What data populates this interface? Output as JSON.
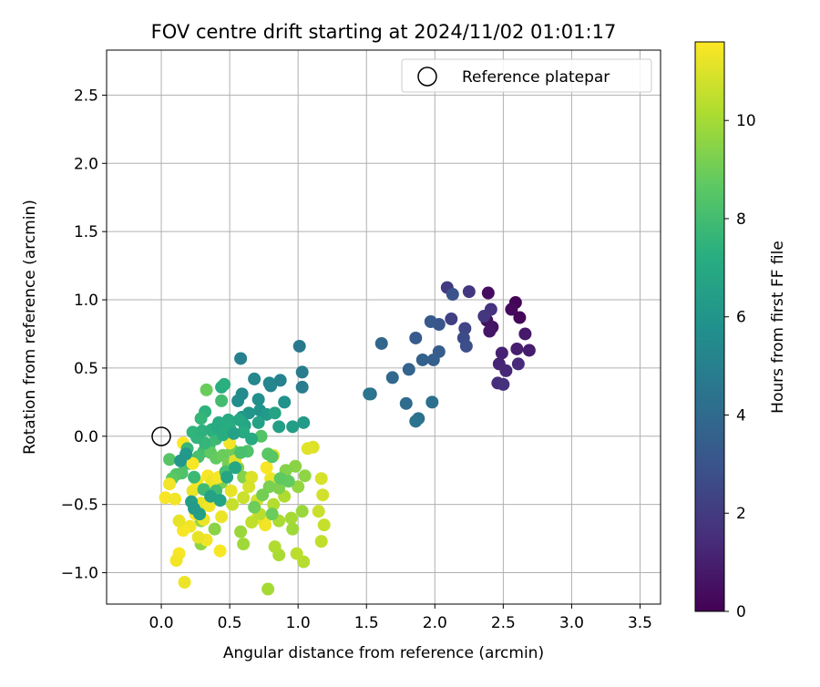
{
  "chart_data": {
    "type": "scatter",
    "title": "FOV centre drift starting at 2024/11/02 01:01:17",
    "xlabel": "Angular distance from reference (arcmin)",
    "ylabel": "Rotation from reference (arcmin)",
    "xlim": [
      -0.4,
      3.65
    ],
    "ylim": [
      -1.23,
      2.83
    ],
    "xticks": [
      0.0,
      0.5,
      1.0,
      1.5,
      2.0,
      2.5,
      3.0,
      3.5
    ],
    "xtick_labels": [
      "0.0",
      "0.5",
      "1.0",
      "1.5",
      "2.0",
      "2.5",
      "3.0",
      "3.5"
    ],
    "yticks": [
      -1.0,
      -0.5,
      0.0,
      0.5,
      1.0,
      1.5,
      2.0,
      2.5
    ],
    "ytick_labels": [
      "−1.0",
      "−0.5",
      "0.0",
      "0.5",
      "1.0",
      "1.5",
      "2.0",
      "2.5"
    ],
    "grid": true,
    "legend": {
      "placement": "top-right",
      "entries": [
        "Reference platepar"
      ]
    },
    "colormap": "viridis",
    "colorbar": {
      "label": "Hours from first FF file",
      "range": [
        0,
        11.6
      ],
      "ticks": [
        0,
        2,
        4,
        6,
        8,
        10
      ],
      "tick_labels": [
        "0",
        "2",
        "4",
        "6",
        "8",
        "10"
      ]
    },
    "reference_point": {
      "x": 0.0,
      "y": 0.0,
      "label": "Reference platepar"
    },
    "series": [
      {
        "points": [
          {
            "x": 2.59,
            "y": 0.98,
            "t": 0.1
          },
          {
            "x": 2.62,
            "y": 0.87,
            "t": 0.2
          },
          {
            "x": 2.56,
            "y": 0.93,
            "t": 0.3
          },
          {
            "x": 2.39,
            "y": 1.05,
            "t": 0.4
          },
          {
            "x": 2.38,
            "y": 0.85,
            "t": 0.5
          },
          {
            "x": 2.42,
            "y": 0.8,
            "t": 0.6
          },
          {
            "x": 2.4,
            "y": 0.77,
            "t": 0.7
          },
          {
            "x": 2.66,
            "y": 0.75,
            "t": 0.8
          },
          {
            "x": 2.69,
            "y": 0.63,
            "t": 0.9
          },
          {
            "x": 2.6,
            "y": 0.64,
            "t": 1.0
          },
          {
            "x": 2.49,
            "y": 0.61,
            "t": 1.1
          },
          {
            "x": 2.47,
            "y": 0.53,
            "t": 1.2
          },
          {
            "x": 2.52,
            "y": 0.48,
            "t": 1.3
          },
          {
            "x": 2.61,
            "y": 0.53,
            "t": 1.4
          },
          {
            "x": 2.46,
            "y": 0.39,
            "t": 1.5
          },
          {
            "x": 2.5,
            "y": 0.38,
            "t": 1.6
          },
          {
            "x": 2.41,
            "y": 0.93,
            "t": 1.7
          },
          {
            "x": 2.36,
            "y": 0.88,
            "t": 1.8
          },
          {
            "x": 2.25,
            "y": 1.06,
            "t": 1.9
          },
          {
            "x": 2.09,
            "y": 1.09,
            "t": 2.0
          },
          {
            "x": 2.12,
            "y": 0.86,
            "t": 2.2
          },
          {
            "x": 2.22,
            "y": 0.79,
            "t": 2.4
          },
          {
            "x": 2.21,
            "y": 0.72,
            "t": 2.6
          },
          {
            "x": 2.23,
            "y": 0.66,
            "t": 2.8
          },
          {
            "x": 2.13,
            "y": 1.04,
            "t": 3.0
          },
          {
            "x": 2.03,
            "y": 0.82,
            "t": 3.1
          },
          {
            "x": 1.97,
            "y": 0.84,
            "t": 3.2
          },
          {
            "x": 1.86,
            "y": 0.72,
            "t": 3.3
          },
          {
            "x": 2.03,
            "y": 0.62,
            "t": 3.4
          },
          {
            "x": 1.99,
            "y": 0.56,
            "t": 3.5
          },
          {
            "x": 1.91,
            "y": 0.56,
            "t": 3.6
          },
          {
            "x": 1.81,
            "y": 0.49,
            "t": 3.7
          },
          {
            "x": 1.61,
            "y": 0.68,
            "t": 3.8
          },
          {
            "x": 1.69,
            "y": 0.43,
            "t": 3.9
          },
          {
            "x": 1.53,
            "y": 0.31,
            "t": 4.0
          },
          {
            "x": 1.79,
            "y": 0.24,
            "t": 4.1
          },
          {
            "x": 1.98,
            "y": 0.25,
            "t": 4.2
          },
          {
            "x": 1.88,
            "y": 0.13,
            "t": 4.3
          },
          {
            "x": 1.86,
            "y": 0.11,
            "t": 4.4
          },
          {
            "x": 1.52,
            "y": 0.31,
            "t": 4.5
          },
          {
            "x": 1.01,
            "y": 0.66,
            "t": 4.7
          },
          {
            "x": 1.03,
            "y": 0.47,
            "t": 4.8
          },
          {
            "x": 1.03,
            "y": 0.36,
            "t": 4.9
          },
          {
            "x": 0.58,
            "y": 0.57,
            "t": 5.0
          },
          {
            "x": 0.87,
            "y": 0.41,
            "t": 5.1
          },
          {
            "x": 0.8,
            "y": 0.37,
            "t": 5.2
          },
          {
            "x": 0.79,
            "y": 0.39,
            "t": 5.3
          },
          {
            "x": 0.68,
            "y": 0.42,
            "t": 5.4
          },
          {
            "x": 0.59,
            "y": 0.31,
            "t": 5.5
          },
          {
            "x": 0.56,
            "y": 0.26,
            "t": 5.6
          },
          {
            "x": 0.71,
            "y": 0.27,
            "t": 5.7
          },
          {
            "x": 0.9,
            "y": 0.25,
            "t": 5.8
          },
          {
            "x": 0.72,
            "y": 0.19,
            "t": 5.9
          },
          {
            "x": 0.64,
            "y": 0.17,
            "t": 6.0
          },
          {
            "x": 0.59,
            "y": 0.14,
            "t": 6.1
          },
          {
            "x": 0.77,
            "y": 0.16,
            "t": 6.2
          },
          {
            "x": 1.04,
            "y": 0.1,
            "t": 6.3
          },
          {
            "x": 0.96,
            "y": 0.07,
            "t": 6.4
          },
          {
            "x": 0.86,
            "y": 0.07,
            "t": 6.5
          },
          {
            "x": 0.71,
            "y": 0.1,
            "t": 6.6
          },
          {
            "x": 0.83,
            "y": 0.17,
            "t": 6.7
          },
          {
            "x": 0.61,
            "y": 0.08,
            "t": 6.8
          },
          {
            "x": 0.57,
            "y": 0.12,
            "t": 6.9
          },
          {
            "x": 0.49,
            "y": 0.12,
            "t": 7.0
          },
          {
            "x": 0.42,
            "y": 0.1,
            "t": 7.1
          },
          {
            "x": 0.44,
            "y": 0.36,
            "t": 7.2
          },
          {
            "x": 0.46,
            "y": 0.38,
            "t": 7.3
          },
          {
            "x": 0.32,
            "y": 0.18,
            "t": 7.4
          },
          {
            "x": 0.23,
            "y": 0.03,
            "t": 7.5
          },
          {
            "x": 0.29,
            "y": 0.13,
            "t": 7.6
          },
          {
            "x": 0.38,
            "y": 0.03,
            "t": 7.7
          },
          {
            "x": 0.4,
            "y": -0.02,
            "t": 7.8
          },
          {
            "x": 0.35,
            "y": -0.07,
            "t": 7.9
          },
          {
            "x": 0.31,
            "y": -0.11,
            "t": 8.0
          },
          {
            "x": 0.27,
            "y": -0.15,
            "t": 8.1
          },
          {
            "x": 0.2,
            "y": -0.2,
            "t": 8.2
          },
          {
            "x": 0.15,
            "y": -0.27,
            "t": 8.3
          },
          {
            "x": 0.11,
            "y": -0.28,
            "t": 8.4
          },
          {
            "x": 0.06,
            "y": -0.17,
            "t": 8.5
          },
          {
            "x": 0.08,
            "y": -0.31,
            "t": 8.6
          },
          {
            "x": 0.36,
            "y": -0.12,
            "t": 8.7
          },
          {
            "x": 0.4,
            "y": -0.16,
            "t": 8.8
          },
          {
            "x": 0.45,
            "y": -0.14,
            "t": 8.9
          },
          {
            "x": 0.52,
            "y": -0.1,
            "t": 9.0
          },
          {
            "x": 0.49,
            "y": -0.2,
            "t": 9.1
          },
          {
            "x": 0.44,
            "y": -0.34,
            "t": 9.2
          },
          {
            "x": 0.56,
            "y": -0.23,
            "t": 9.3
          },
          {
            "x": 0.6,
            "y": -0.3,
            "t": 9.4
          },
          {
            "x": 0.39,
            "y": -0.68,
            "t": 9.5
          },
          {
            "x": 0.29,
            "y": -0.79,
            "t": 9.6
          },
          {
            "x": 0.29,
            "y": -0.62,
            "t": 9.7
          },
          {
            "x": 0.58,
            "y": -0.7,
            "t": 9.8
          },
          {
            "x": 0.6,
            "y": -0.79,
            "t": 9.9
          },
          {
            "x": 0.78,
            "y": -1.12,
            "t": 10.0
          },
          {
            "x": 0.86,
            "y": -0.87,
            "t": 10.1
          },
          {
            "x": 0.83,
            "y": -0.81,
            "t": 10.2
          },
          {
            "x": 1.04,
            "y": -0.92,
            "t": 10.3
          },
          {
            "x": 0.99,
            "y": -0.86,
            "t": 10.4
          },
          {
            "x": 1.17,
            "y": -0.77,
            "t": 10.5
          },
          {
            "x": 1.19,
            "y": -0.65,
            "t": 10.6
          },
          {
            "x": 1.15,
            "y": -0.55,
            "t": 10.7
          },
          {
            "x": 1.18,
            "y": -0.43,
            "t": 10.8
          },
          {
            "x": 1.17,
            "y": -0.31,
            "t": 10.9
          },
          {
            "x": 1.11,
            "y": -0.08,
            "t": 11.0
          },
          {
            "x": 1.07,
            "y": -0.09,
            "t": 11.1
          },
          {
            "x": 0.82,
            "y": -0.14,
            "t": 11.2
          },
          {
            "x": 0.8,
            "y": -0.31,
            "t": 11.3
          },
          {
            "x": 0.06,
            "y": -0.35,
            "t": 11.4
          },
          {
            "x": 0.03,
            "y": -0.45,
            "t": 11.5
          },
          {
            "x": 0.1,
            "y": -0.46,
            "t": 11.4
          },
          {
            "x": 0.23,
            "y": -0.4,
            "t": 11.3
          },
          {
            "x": 0.29,
            "y": -0.49,
            "t": 11.2
          },
          {
            "x": 0.35,
            "y": -0.51,
            "t": 11.4
          },
          {
            "x": 0.25,
            "y": -0.57,
            "t": 11.5
          },
          {
            "x": 0.31,
            "y": -0.61,
            "t": 11.3
          },
          {
            "x": 0.21,
            "y": -0.66,
            "t": 11.4
          },
          {
            "x": 0.16,
            "y": -0.69,
            "t": 11.5
          },
          {
            "x": 0.13,
            "y": -0.62,
            "t": 11.2
          },
          {
            "x": 0.44,
            "y": -0.59,
            "t": 11.3
          },
          {
            "x": 0.43,
            "y": -0.84,
            "t": 11.5
          },
          {
            "x": 0.33,
            "y": -0.76,
            "t": 11.4
          },
          {
            "x": 0.27,
            "y": -0.74,
            "t": 11.2
          },
          {
            "x": 0.13,
            "y": -0.86,
            "t": 11.5
          },
          {
            "x": 0.11,
            "y": -0.91,
            "t": 11.4
          },
          {
            "x": 0.17,
            "y": -1.07,
            "t": 11.3
          },
          {
            "x": 0.76,
            "y": -0.6,
            "t": 11.5
          },
          {
            "x": 0.76,
            "y": -0.65,
            "t": 11.4
          },
          {
            "x": 0.7,
            "y": -0.6,
            "t": 11.2
          },
          {
            "x": 0.77,
            "y": -0.23,
            "t": 11.5
          },
          {
            "x": 0.16,
            "y": -0.05,
            "t": 11.6
          },
          {
            "x": 0.23,
            "y": -0.2,
            "t": 11.5
          },
          {
            "x": 0.34,
            "y": -0.29,
            "t": 11.5
          },
          {
            "x": 0.26,
            "y": -0.33,
            "t": 11.4
          },
          {
            "x": 0.37,
            "y": -0.33,
            "t": 11.3
          },
          {
            "x": 0.42,
            "y": -0.3,
            "t": 11.5
          },
          {
            "x": 0.5,
            "y": -0.05,
            "t": 11.4
          },
          {
            "x": 0.51,
            "y": -0.4,
            "t": 11.2
          },
          {
            "x": 0.54,
            "y": -0.18,
            "t": 11.1
          },
          {
            "x": 0.66,
            "y": -0.3,
            "t": 11.0
          },
          {
            "x": 0.64,
            "y": -0.37,
            "t": 10.9
          },
          {
            "x": 0.7,
            "y": -0.47,
            "t": 10.8
          },
          {
            "x": 0.6,
            "y": -0.45,
            "t": 10.7
          },
          {
            "x": 0.52,
            "y": -0.5,
            "t": 10.6
          },
          {
            "x": 0.66,
            "y": -0.63,
            "t": 10.5
          },
          {
            "x": 0.72,
            "y": -0.57,
            "t": 10.4
          },
          {
            "x": 0.82,
            "y": -0.5,
            "t": 10.3
          },
          {
            "x": 0.9,
            "y": -0.44,
            "t": 10.2
          },
          {
            "x": 0.86,
            "y": -0.62,
            "t": 10.1
          },
          {
            "x": 0.95,
            "y": -0.6,
            "t": 10.0
          },
          {
            "x": 0.96,
            "y": -0.68,
            "t": 9.9
          },
          {
            "x": 1.03,
            "y": -0.55,
            "t": 9.8
          },
          {
            "x": 1.0,
            "y": -0.37,
            "t": 9.7
          },
          {
            "x": 1.05,
            "y": -0.29,
            "t": 9.6
          },
          {
            "x": 0.98,
            "y": -0.22,
            "t": 9.5
          },
          {
            "x": 0.91,
            "y": -0.25,
            "t": 9.4
          },
          {
            "x": 0.86,
            "y": -0.38,
            "t": 9.3
          },
          {
            "x": 0.79,
            "y": -0.37,
            "t": 9.2
          },
          {
            "x": 0.74,
            "y": -0.43,
            "t": 9.1
          },
          {
            "x": 0.68,
            "y": -0.52,
            "t": 9.0
          },
          {
            "x": 0.81,
            "y": -0.57,
            "t": 8.9
          },
          {
            "x": 0.93,
            "y": -0.33,
            "t": 8.8
          },
          {
            "x": 0.87,
            "y": -0.31,
            "t": 8.7
          },
          {
            "x": 0.78,
            "y": -0.13,
            "t": 8.6
          },
          {
            "x": 0.81,
            "y": -0.15,
            "t": 8.5
          },
          {
            "x": 0.73,
            "y": 0.0,
            "t": 8.4
          },
          {
            "x": 0.63,
            "y": -0.11,
            "t": 8.3
          },
          {
            "x": 0.58,
            "y": -0.12,
            "t": 8.2
          },
          {
            "x": 0.47,
            "y": -0.26,
            "t": 8.1
          },
          {
            "x": 0.4,
            "y": -0.4,
            "t": 8.0
          },
          {
            "x": 0.31,
            "y": -0.39,
            "t": 7.9
          },
          {
            "x": 0.24,
            "y": -0.3,
            "t": 7.8
          },
          {
            "x": 0.19,
            "y": -0.09,
            "t": 7.7
          },
          {
            "x": 0.32,
            "y": -0.05,
            "t": 7.6
          },
          {
            "x": 0.26,
            "y": -0.01,
            "t": 7.5
          },
          {
            "x": 0.3,
            "y": 0.04,
            "t": 7.4
          },
          {
            "x": 0.37,
            "y": 0.05,
            "t": 7.3
          },
          {
            "x": 0.5,
            "y": 0.06,
            "t": 7.2
          },
          {
            "x": 0.6,
            "y": 0.03,
            "t": 7.1
          },
          {
            "x": 0.66,
            "y": -0.02,
            "t": 7.0
          },
          {
            "x": 0.54,
            "y": -0.23,
            "t": 6.9
          },
          {
            "x": 0.48,
            "y": -0.3,
            "t": 6.8
          },
          {
            "x": 0.43,
            "y": -0.47,
            "t": 6.7
          },
          {
            "x": 0.36,
            "y": -0.44,
            "t": 6.6
          },
          {
            "x": 0.28,
            "y": -0.57,
            "t": 6.5
          },
          {
            "x": 0.22,
            "y": -0.48,
            "t": 6.4
          },
          {
            "x": 0.24,
            "y": -0.53,
            "t": 6.3
          },
          {
            "x": 0.18,
            "y": -0.13,
            "t": 6.2
          },
          {
            "x": 0.14,
            "y": -0.18,
            "t": 6.1
          },
          {
            "x": 0.33,
            "y": 0.34,
            "t": 8.9
          },
          {
            "x": 0.44,
            "y": 0.26,
            "t": 8.0
          },
          {
            "x": 0.41,
            "y": 0.07,
            "t": 7.0
          },
          {
            "x": 0.45,
            "y": 0.01,
            "t": 7.2
          },
          {
            "x": 0.53,
            "y": 0.02,
            "t": 6.6
          }
        ]
      }
    ]
  }
}
